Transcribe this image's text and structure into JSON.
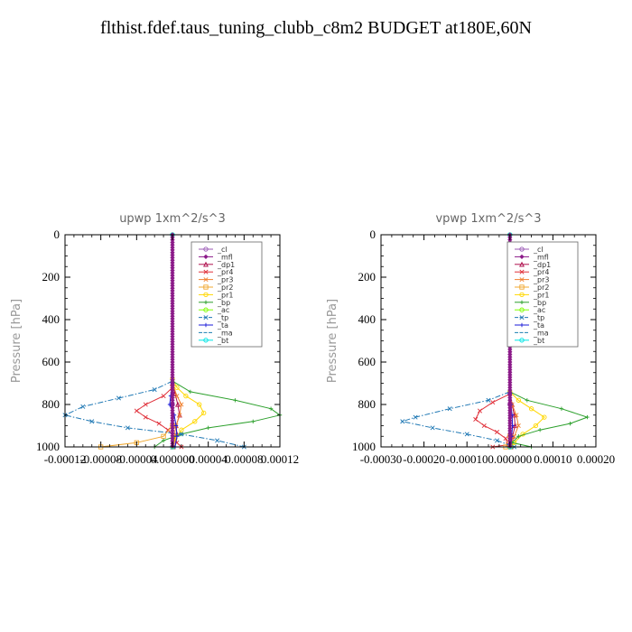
{
  "title": "flthist.fdef.taus_tuning_clubb_c8m2  BUDGET at180E,60N",
  "chart_data": [
    {
      "type": "line",
      "title": "upwp   1xm^2/s^3",
      "xlabel": "",
      "ylabel": "Pressure [hPa]",
      "xlim": [
        -0.00012,
        0.00012
      ],
      "ylim": [
        1000,
        0
      ],
      "x_ticks": [
        -0.00012,
        -8e-05,
        -4e-05,
        0.0,
        4e-05,
        8e-05,
        0.00012
      ],
      "x_tick_labels": [
        "-0.00012",
        "-0.00008",
        "-0.00004",
        "0.000000",
        "0.00004",
        "0.00008",
        "0.00012"
      ],
      "y_ticks": [
        0,
        200,
        400,
        600,
        800,
        1000
      ],
      "y_tick_labels": [
        "0",
        "200",
        "400",
        "600",
        "800",
        "1000"
      ],
      "legend_position": "top-right",
      "series": [
        {
          "name": "_cl",
          "color": "#9b59b6",
          "y": [
            0,
            800,
            1000
          ],
          "x": [
            0,
            0,
            0
          ]
        },
        {
          "name": "_mfl",
          "color": "#8b1a89",
          "y": [
            0,
            800,
            1000
          ],
          "x": [
            0,
            0,
            0
          ]
        },
        {
          "name": "_dp1",
          "color": "#b0124f",
          "y": [
            700,
            750,
            800,
            850,
            900,
            940,
            970,
            1000
          ],
          "x": [
            0,
            3e-06,
            6e-06,
            8e-06,
            4e-06,
            5e-06,
            2e-06,
            5e-07
          ]
        },
        {
          "name": "_pr4",
          "color": "#e0303a",
          "y": [
            720,
            760,
            800,
            830,
            860,
            890,
            920,
            950,
            980,
            1000
          ],
          "x": [
            0,
            -1e-05,
            -3e-05,
            -4e-05,
            -3e-05,
            -1.5e-05,
            -5e-06,
            2e-06,
            5e-06,
            1e-05
          ]
        },
        {
          "name": "_pr3",
          "color": "#f08030",
          "y": [
            700,
            760,
            800,
            850,
            900,
            950,
            1000
          ],
          "x": [
            0,
            5e-06,
            1e-05,
            8e-06,
            4e-06,
            2e-06,
            1e-06
          ]
        },
        {
          "name": "_pr2",
          "color": "#f0a830",
          "y": [
            900,
            950,
            980,
            1000
          ],
          "x": [
            0,
            -1e-05,
            -4e-05,
            -8e-05
          ]
        },
        {
          "name": "_pr1",
          "color": "#ffd700",
          "y": [
            680,
            720,
            760,
            800,
            840,
            880,
            920,
            960,
            1000
          ],
          "x": [
            0,
            5e-06,
            1.5e-05,
            3e-05,
            3.5e-05,
            2.5e-05,
            1e-05,
            3e-06,
            1e-06
          ]
        },
        {
          "name": "_bp",
          "color": "#2ca02c",
          "y": [
            690,
            740,
            780,
            820,
            850,
            880,
            910,
            940,
            970,
            1000
          ],
          "x": [
            0,
            2e-05,
            7e-05,
            0.00011,
            0.00012,
            9e-05,
            4e-05,
            1e-05,
            -1e-05,
            -2e-05
          ]
        },
        {
          "name": "_ac",
          "color": "#7fff00",
          "y": [
            0,
            1000
          ],
          "x": [
            0,
            0
          ]
        },
        {
          "name": "_tp",
          "color": "#1f78b4",
          "y": [
            690,
            730,
            770,
            810,
            850,
            880,
            910,
            940,
            970,
            1000
          ],
          "x": [
            0,
            -2e-05,
            -6e-05,
            -0.0001,
            -0.00012,
            -9e-05,
            -5e-05,
            1e-05,
            5e-05,
            8e-05
          ]
        },
        {
          "name": "_ta",
          "color": "#1a1ad8",
          "y": [
            700,
            760,
            800,
            850,
            900,
            950,
            1000
          ],
          "x": [
            0,
            -2e-06,
            -3e-06,
            2e-06,
            4e-06,
            5e-06,
            3e-06
          ]
        },
        {
          "name": "_ma",
          "color": "#1a7fb0",
          "y": [
            0,
            1000
          ],
          "x": [
            0,
            0
          ]
        },
        {
          "name": "_bt",
          "color": "#00e5e5",
          "y": [
            0,
            1000
          ],
          "x": [
            0,
            0
          ]
        }
      ]
    },
    {
      "type": "line",
      "title": "vpwp   1xm^2/s^3",
      "xlabel": "",
      "ylabel": "Pressure [hPa]",
      "xlim": [
        -0.0003,
        0.0002
      ],
      "ylim": [
        1000,
        0
      ],
      "x_ticks": [
        -0.0003,
        -0.0002,
        -0.0001,
        0.0,
        0.0001,
        0.0002
      ],
      "x_tick_labels": [
        "-0.00030",
        "-0.00020",
        "-0.00010",
        "0.000000",
        "0.00010",
        "0.00020"
      ],
      "y_ticks": [
        0,
        200,
        400,
        600,
        800,
        1000
      ],
      "y_tick_labels": [
        "0",
        "200",
        "400",
        "600",
        "800",
        "1000"
      ],
      "legend_position": "top-right",
      "series": [
        {
          "name": "_cl",
          "color": "#9b59b6",
          "y": [
            0,
            800,
            1000
          ],
          "x": [
            0,
            0,
            0
          ]
        },
        {
          "name": "_mfl",
          "color": "#8b1a89",
          "y": [
            0,
            800,
            1000
          ],
          "x": [
            0,
            0,
            0
          ]
        },
        {
          "name": "_dp1",
          "color": "#b0124f",
          "y": [
            740,
            800,
            850,
            900,
            950,
            1000
          ],
          "x": [
            0,
            5e-06,
            1e-05,
            1.2e-05,
            6e-06,
            2e-06
          ]
        },
        {
          "name": "_pr4",
          "color": "#e0303a",
          "y": [
            750,
            790,
            830,
            870,
            900,
            930,
            960,
            990,
            1000
          ],
          "x": [
            0,
            -4e-05,
            -7e-05,
            -8e-05,
            -6e-05,
            -3e-05,
            -1e-05,
            -5e-06,
            -4e-05
          ]
        },
        {
          "name": "_pr3",
          "color": "#f08030",
          "y": [
            750,
            800,
            850,
            900,
            950,
            1000
          ],
          "x": [
            0,
            5e-06,
            1.5e-05,
            2e-05,
            1e-05,
            3e-06
          ]
        },
        {
          "name": "_pr2",
          "color": "#f0a830",
          "y": [
            950,
            1000
          ],
          "x": [
            0,
            -1e-05
          ]
        },
        {
          "name": "_pr1",
          "color": "#ffd700",
          "y": [
            740,
            780,
            820,
            860,
            900,
            940,
            980,
            1000
          ],
          "x": [
            0,
            2e-05,
            5e-05,
            8e-05,
            6e-05,
            3e-05,
            1e-05,
            2e-06
          ]
        },
        {
          "name": "_bp",
          "color": "#2ca02c",
          "y": [
            740,
            780,
            820,
            860,
            890,
            920,
            950,
            980,
            1000
          ],
          "x": [
            0,
            4e-05,
            0.00012,
            0.00018,
            0.00014,
            7e-05,
            2e-05,
            5e-06,
            5e-05
          ]
        },
        {
          "name": "_ac",
          "color": "#7fff00",
          "y": [
            0,
            1000
          ],
          "x": [
            0,
            0
          ]
        },
        {
          "name": "_tp",
          "color": "#1f78b4",
          "y": [
            740,
            780,
            820,
            860,
            880,
            910,
            940,
            970,
            1000
          ],
          "x": [
            0,
            -5e-05,
            -0.00014,
            -0.00022,
            -0.00025,
            -0.00018,
            -0.0001,
            -3e-05,
            1e-05
          ]
        },
        {
          "name": "_ta",
          "color": "#1a1ad8",
          "y": [
            750,
            800,
            850,
            900,
            950,
            1000
          ],
          "x": [
            0,
            2e-06,
            5e-06,
            6e-06,
            4e-06,
            2e-06
          ]
        },
        {
          "name": "_ma",
          "color": "#1a7fb0",
          "y": [
            0,
            1000
          ],
          "x": [
            0,
            0
          ]
        },
        {
          "name": "_bt",
          "color": "#00e5e5",
          "y": [
            0,
            1000
          ],
          "x": [
            0,
            0
          ]
        }
      ]
    }
  ]
}
